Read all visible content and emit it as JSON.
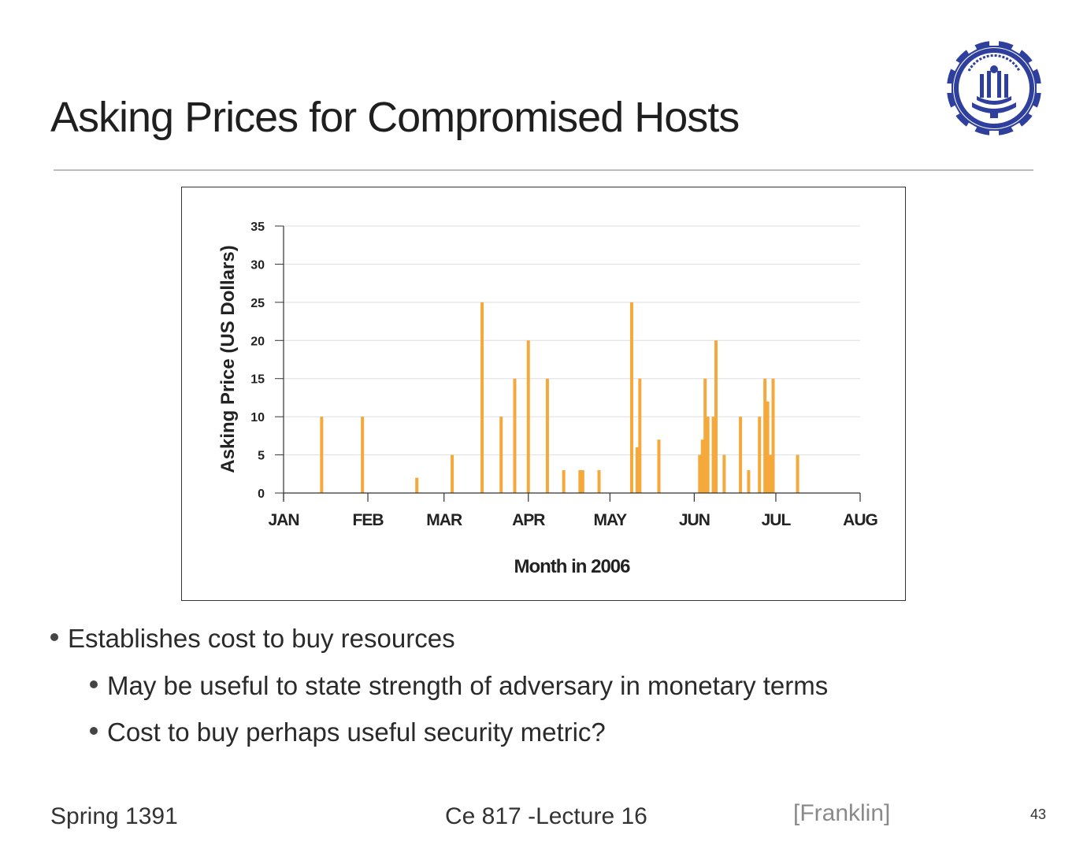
{
  "slide": {
    "title": "Asking Prices for Compromised Hosts",
    "bullets": [
      {
        "level": 1,
        "text": "Establishes cost to buy resources"
      },
      {
        "level": 2,
        "text": "May be useful to state strength of adversary in monetary terms"
      },
      {
        "level": 2,
        "text": "Cost to buy perhaps useful security metric?"
      }
    ],
    "footer": {
      "left": "Spring 1391",
      "center": "Ce 817 -Lecture 16",
      "citation": "[Franklin]",
      "page_number": "43"
    },
    "logo": {
      "icon": "sharif-university-logo-icon",
      "color": "#2e3f9e"
    }
  },
  "chart_data": {
    "type": "bar",
    "title": "",
    "xlabel": "Month in 2006",
    "ylabel": "Asking Price (US Dollars)",
    "ylim": [
      0,
      35
    ],
    "yticks": [
      0,
      5,
      10,
      15,
      20,
      25,
      30,
      35
    ],
    "xlim_days": [
      0,
      212
    ],
    "xtick_labels": [
      "JAN",
      "FEB",
      "MAR",
      "APR",
      "MAY",
      "JUN",
      "JUL",
      "AUG"
    ],
    "xtick_days": [
      0,
      31,
      59,
      90,
      120,
      151,
      181,
      212
    ],
    "grid": true,
    "bar_color": "#f5a93a",
    "x_unit": "day of year 2006 (0 = Jan 1)",
    "points": [
      {
        "day": 14,
        "value": 10
      },
      {
        "day": 29,
        "value": 10
      },
      {
        "day": 49,
        "value": 2
      },
      {
        "day": 62,
        "value": 5
      },
      {
        "day": 73,
        "value": 25
      },
      {
        "day": 80,
        "value": 10
      },
      {
        "day": 85,
        "value": 15
      },
      {
        "day": 90,
        "value": 20
      },
      {
        "day": 97,
        "value": 15
      },
      {
        "day": 103,
        "value": 3
      },
      {
        "day": 109,
        "value": 3
      },
      {
        "day": 110,
        "value": 3
      },
      {
        "day": 116,
        "value": 3
      },
      {
        "day": 128,
        "value": 25
      },
      {
        "day": 130,
        "value": 6
      },
      {
        "day": 131,
        "value": 15
      },
      {
        "day": 138,
        "value": 7
      },
      {
        "day": 153,
        "value": 5
      },
      {
        "day": 154,
        "value": 7
      },
      {
        "day": 155,
        "value": 15
      },
      {
        "day": 156,
        "value": 10
      },
      {
        "day": 158,
        "value": 10
      },
      {
        "day": 159,
        "value": 20
      },
      {
        "day": 162,
        "value": 5
      },
      {
        "day": 168,
        "value": 10
      },
      {
        "day": 171,
        "value": 3
      },
      {
        "day": 175,
        "value": 10
      },
      {
        "day": 177,
        "value": 15
      },
      {
        "day": 178,
        "value": 12
      },
      {
        "day": 179,
        "value": 5
      },
      {
        "day": 180,
        "value": 15
      },
      {
        "day": 189,
        "value": 5
      }
    ]
  }
}
